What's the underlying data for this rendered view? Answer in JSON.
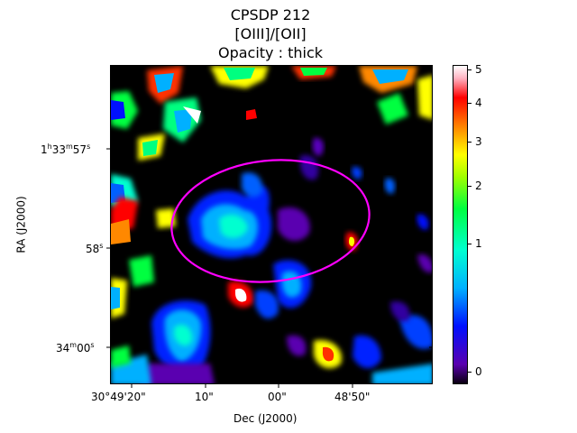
{
  "chart_data": {
    "type": "heatmap",
    "title_lines": [
      "CPSDP 212",
      "[OIII]/[OII]",
      "Opacity : thick"
    ],
    "xlabel": "Dec (J2000)",
    "ylabel": "RA (J2000)",
    "x_ticks": [
      "30°49'20\"",
      "10\"",
      "00\"",
      "48'50\""
    ],
    "y_ticks": [
      {
        "h": "1",
        "m": "33",
        "s": "57",
        "text": "1h33m57s"
      },
      {
        "s": "58",
        "text": "58s"
      },
      {
        "m": "34",
        "s": "00",
        "text": "34m00s"
      }
    ],
    "colorbar": {
      "ticks": [
        "0",
        "1",
        "2",
        "3",
        "4",
        "5"
      ],
      "range": [
        -0.1,
        5.1
      ],
      "colormap": "gist_ncar-like (black-purple-blue-cyan-green-yellow-red-white)"
    },
    "aperture": {
      "shape": "ellipse",
      "color": "#ff00ff"
    },
    "background_color": "#000000"
  }
}
